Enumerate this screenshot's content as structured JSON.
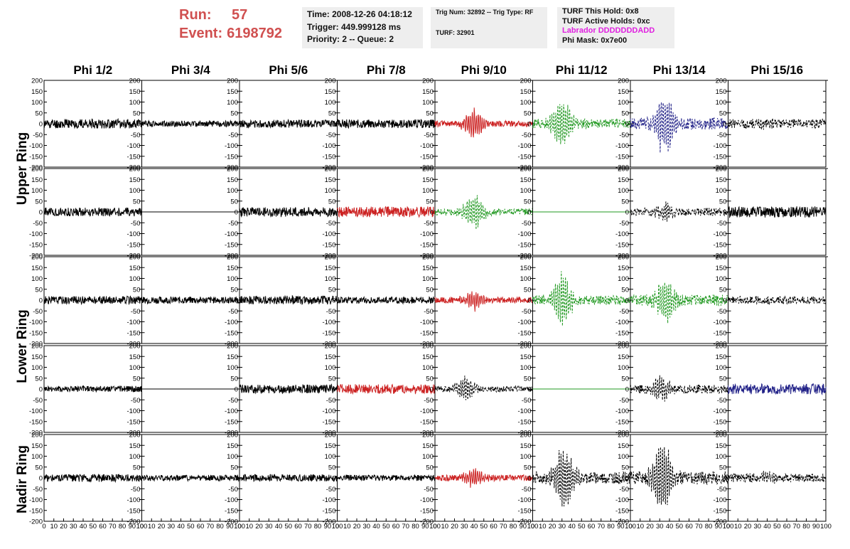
{
  "header": {
    "run_label": "Run:",
    "run_value": "57",
    "event_label": "Event:",
    "event_value": "6198792",
    "time": "Time: 2008-12-26 04:18:12",
    "trigger": "Trigger: 449.999128 ms",
    "priority": "Priority: 2 -- Queue: 2",
    "trig_num": "Trig Num: 32892 -- Trig Type: RF",
    "turf": "TURF: 32901",
    "turf_hold": "TURF This Hold: 0x8",
    "turf_active": "TURF Active Holds: 0xc",
    "labrador": "Labrador DDDDDDDADD",
    "phi_mask": "Phi Mask: 0x7e00"
  },
  "colors": {
    "run_text": "#d05050",
    "red": "#cc2222",
    "green": "#229922",
    "blue": "#222288",
    "black": "#000000",
    "magenta": "#e020e0"
  },
  "columns": [
    "Phi 1/2",
    "Phi 3/4",
    "Phi 5/6",
    "Phi 7/8",
    "Phi 9/10",
    "Phi 11/12",
    "Phi 13/14",
    "Phi 15/16"
  ],
  "ring_labels": [
    {
      "label": "Upper Ring"
    },
    {
      "label": "Lower Ring"
    },
    {
      "label": "Nadir Ring"
    }
  ],
  "chart_data": {
    "type": "line",
    "xlim": [
      0,
      100
    ],
    "ylim": [
      -200,
      200
    ],
    "x_ticks": [
      "0",
      "10",
      "20",
      "30",
      "40",
      "50",
      "60",
      "70",
      "80",
      "90",
      "100"
    ],
    "y_ticks": [
      "200",
      "150",
      "100",
      "50",
      "0",
      "-50",
      "-100",
      "-150",
      "-200"
    ],
    "panels": [
      [
        {
          "color": "black",
          "style": "solid",
          "amp": 22,
          "burst": 0,
          "center": 40,
          "seed": 11
        },
        {
          "color": "black",
          "style": "solid",
          "amp": 14,
          "burst": 0,
          "center": 40,
          "seed": 12
        },
        {
          "color": "black",
          "style": "solid",
          "amp": 18,
          "burst": 0,
          "center": 40,
          "seed": 13
        },
        {
          "color": "black",
          "style": "solid",
          "amp": 20,
          "burst": 0,
          "center": 40,
          "seed": 14
        },
        {
          "color": "red",
          "style": "solid",
          "amp": 14,
          "burst": 80,
          "center": 40,
          "seed": 15
        },
        {
          "color": "green",
          "style": "dashed",
          "amp": 22,
          "burst": 125,
          "center": 30,
          "seed": 16
        },
        {
          "color": "blue",
          "style": "dashed",
          "amp": 28,
          "burst": 150,
          "center": 36,
          "seed": 17
        },
        {
          "color": "black",
          "style": "dashed",
          "amp": 22,
          "burst": 10,
          "center": 40,
          "seed": 18
        }
      ],
      [
        {
          "color": "black",
          "style": "solid",
          "amp": 20,
          "burst": 0,
          "center": 40,
          "seed": 21
        },
        {
          "color": "black",
          "style": "solid",
          "amp": 0,
          "burst": 0,
          "center": 40,
          "seed": 22
        },
        {
          "color": "black",
          "style": "solid",
          "amp": 22,
          "burst": 0,
          "center": 40,
          "seed": 23
        },
        {
          "color": "red",
          "style": "solid",
          "amp": 24,
          "burst": 0,
          "center": 40,
          "seed": 24
        },
        {
          "color": "green",
          "style": "dashed",
          "amp": 16,
          "burst": 80,
          "center": 40,
          "seed": 25
        },
        {
          "color": "green",
          "style": "solid",
          "amp": 0,
          "burst": 0,
          "center": 40,
          "seed": 26
        },
        {
          "color": "black",
          "style": "dashed",
          "amp": 18,
          "burst": 40,
          "center": 35,
          "seed": 27
        },
        {
          "color": "black",
          "style": "solid",
          "amp": 26,
          "burst": 0,
          "center": 40,
          "seed": 28
        }
      ],
      [
        {
          "color": "black",
          "style": "solid",
          "amp": 18,
          "burst": 0,
          "center": 40,
          "seed": 31
        },
        {
          "color": "black",
          "style": "solid",
          "amp": 16,
          "burst": 0,
          "center": 40,
          "seed": 32
        },
        {
          "color": "black",
          "style": "solid",
          "amp": 20,
          "burst": 0,
          "center": 40,
          "seed": 33
        },
        {
          "color": "black",
          "style": "solid",
          "amp": 16,
          "burst": 0,
          "center": 40,
          "seed": 34
        },
        {
          "color": "red",
          "style": "solid",
          "amp": 14,
          "burst": 45,
          "center": 40,
          "seed": 35
        },
        {
          "color": "green",
          "style": "dashed",
          "amp": 22,
          "burst": 125,
          "center": 30,
          "seed": 36
        },
        {
          "color": "green",
          "style": "dashed",
          "amp": 26,
          "burst": 110,
          "center": 36,
          "seed": 37
        },
        {
          "color": "black",
          "style": "dashed",
          "amp": 18,
          "burst": 0,
          "center": 40,
          "seed": 38
        }
      ],
      [
        {
          "color": "black",
          "style": "solid",
          "amp": 14,
          "burst": 0,
          "center": 40,
          "seed": 41
        },
        {
          "color": "black",
          "style": "solid",
          "amp": 0,
          "burst": 0,
          "center": 40,
          "seed": 42
        },
        {
          "color": "black",
          "style": "solid",
          "amp": 20,
          "burst": 0,
          "center": 40,
          "seed": 43
        },
        {
          "color": "red",
          "style": "solid",
          "amp": 22,
          "burst": 0,
          "center": 40,
          "seed": 44
        },
        {
          "color": "black",
          "style": "dashed",
          "amp": 14,
          "burst": 60,
          "center": 32,
          "seed": 45
        },
        {
          "color": "green",
          "style": "solid",
          "amp": 0,
          "burst": 0,
          "center": 40,
          "seed": 46
        },
        {
          "color": "black",
          "style": "dashed",
          "amp": 20,
          "burst": 55,
          "center": 32,
          "seed": 47
        },
        {
          "color": "blue",
          "style": "solid",
          "amp": 24,
          "burst": 0,
          "center": 40,
          "seed": 48
        }
      ],
      [
        {
          "color": "black",
          "style": "solid",
          "amp": 18,
          "burst": 0,
          "center": 40,
          "seed": 51
        },
        {
          "color": "black",
          "style": "solid",
          "amp": 14,
          "burst": 0,
          "center": 40,
          "seed": 52
        },
        {
          "color": "black",
          "style": "solid",
          "amp": 16,
          "burst": 0,
          "center": 40,
          "seed": 53
        },
        {
          "color": "black",
          "style": "solid",
          "amp": 14,
          "burst": 0,
          "center": 40,
          "seed": 54
        },
        {
          "color": "red",
          "style": "solid",
          "amp": 14,
          "burst": 50,
          "center": 40,
          "seed": 55
        },
        {
          "color": "black",
          "style": "dashed",
          "amp": 28,
          "burst": 160,
          "center": 33,
          "seed": 56
        },
        {
          "color": "black",
          "style": "dashed",
          "amp": 30,
          "burst": 170,
          "center": 33,
          "seed": 57
        },
        {
          "color": "black",
          "style": "dashed",
          "amp": 20,
          "burst": 20,
          "center": 40,
          "seed": 58
        }
      ]
    ]
  }
}
